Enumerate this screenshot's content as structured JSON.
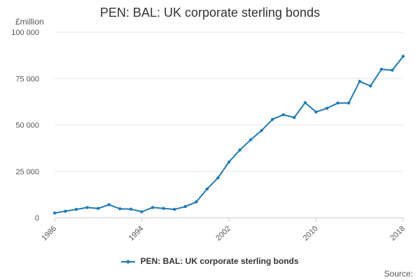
{
  "colors": {
    "series": "#1f7ab5",
    "grid": "#e6e6e6",
    "axis": "#cccccc"
  },
  "chart_data": {
    "type": "line",
    "title": "PEN: BAL: UK corporate sterling bonds",
    "ylabel": "£million",
    "xlabel": "",
    "ylim": [
      0,
      100000
    ],
    "xlim": [
      1986,
      2018
    ],
    "y_ticks": [
      {
        "value": 0,
        "label": "0"
      },
      {
        "value": 25000,
        "label": "25 000"
      },
      {
        "value": 50000,
        "label": "50 000"
      },
      {
        "value": 75000,
        "label": "75 000"
      },
      {
        "value": 100000,
        "label": "100 000"
      }
    ],
    "x_ticks": [
      "1986",
      "1994",
      "2002",
      "2010",
      "2018"
    ],
    "grid": true,
    "legend_position": "bottom",
    "series": [
      {
        "name": "PEN: BAL: UK corporate sterling bonds",
        "x": [
          1986,
          1987,
          1988,
          1989,
          1990,
          1991,
          1992,
          1993,
          1994,
          1995,
          1996,
          1997,
          1998,
          1999,
          2000,
          2001,
          2002,
          2003,
          2004,
          2005,
          2006,
          2007,
          2008,
          2009,
          2010,
          2011,
          2012,
          2013,
          2014,
          2015,
          2016,
          2017,
          2018
        ],
        "values": [
          2500,
          3500,
          4500,
          5500,
          5000,
          7000,
          4800,
          4600,
          3200,
          5500,
          5000,
          4500,
          6000,
          8500,
          15500,
          21500,
          30000,
          36500,
          42000,
          47000,
          53000,
          55500,
          54000,
          62000,
          57000,
          59000,
          61800,
          61800,
          73500,
          71000,
          80000,
          79500,
          87000
        ]
      }
    ]
  },
  "legend": {
    "label": "PEN: BAL: UK corporate sterling bonds"
  },
  "source": {
    "label": "Source:"
  }
}
